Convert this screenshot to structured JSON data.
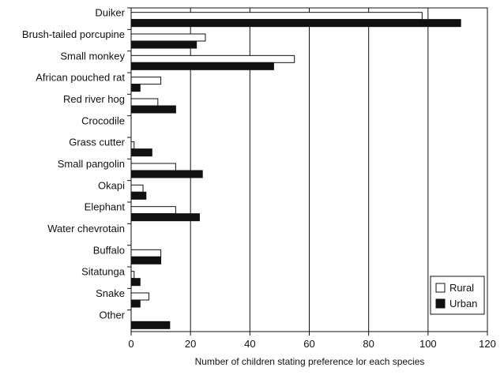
{
  "chart_data": {
    "type": "bar",
    "orientation": "horizontal",
    "categories": [
      "Duiker",
      "Brush-tailed porcupine",
      "Small monkey",
      "African pouched rat",
      "Red river hog",
      "Crocodile",
      "Grass cutter",
      "Small pangolin",
      "Okapi",
      "Elephant",
      "Water chevrotain",
      "Buffalo",
      "Sitatunga",
      "Snake",
      "Other"
    ],
    "series": [
      {
        "name": "Rural",
        "color": "#ffffff",
        "values": [
          98,
          25,
          55,
          10,
          9,
          0,
          1,
          15,
          4,
          15,
          0,
          10,
          1,
          6,
          0
        ]
      },
      {
        "name": "Urban",
        "color": "#111111",
        "values": [
          111,
          22,
          48,
          3,
          15,
          0,
          7,
          24,
          5,
          23,
          0,
          10,
          3,
          3,
          13
        ]
      }
    ],
    "xlabel": "Number of children stating preference lor each species",
    "ylabel": "",
    "xlim": [
      0,
      120
    ],
    "xticks": [
      0,
      20,
      40,
      60,
      80,
      100,
      120
    ],
    "grid": "vertical",
    "legend_position": "bottom-right"
  }
}
